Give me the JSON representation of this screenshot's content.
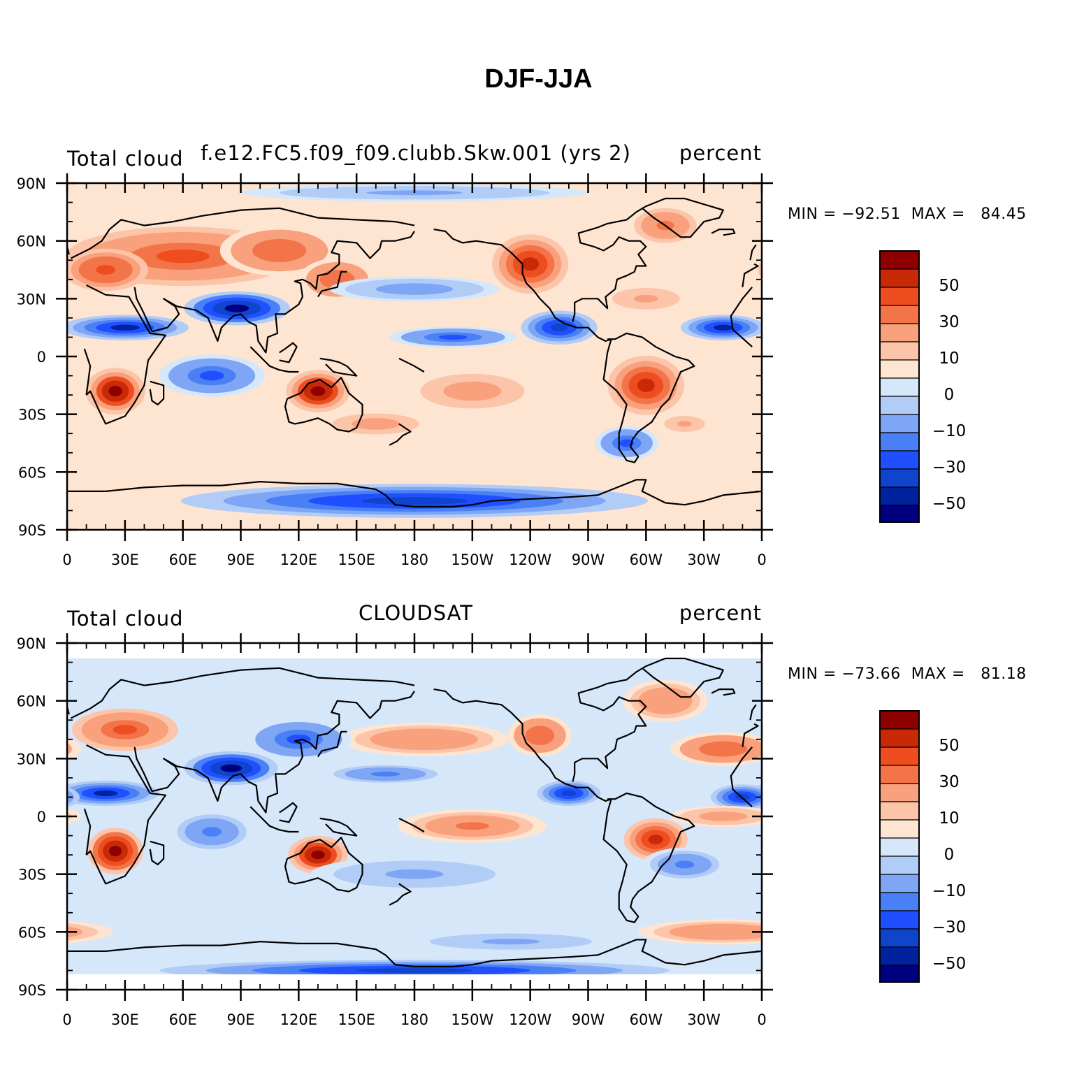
{
  "title": "DJF-JJA",
  "colors": {
    "levels": [
      "#00007f",
      "#00229e",
      "#0f44cc",
      "#1f4fff",
      "#4a80f6",
      "#7ea6f5",
      "#b0ccf7",
      "#d6e7fa",
      "#fde5d2",
      "#fcc4a8",
      "#f9a17c",
      "#f47449",
      "#ee4d20",
      "#c82a08",
      "#8e0000"
    ],
    "coast": "#000000"
  },
  "colorbar_labels": [
    "50",
    "30",
    "10",
    "0",
    "−10",
    "−30",
    "−50"
  ],
  "panels": [
    {
      "left_label": "Total cloud",
      "center_label": "f.e12.FC5.f09_f09.clubb.Skw.001 (yrs 2)",
      "right_label": "percent",
      "minmax": "MIN = −92.51  MAX =   84.45"
    },
    {
      "left_label": "Total cloud",
      "center_label": "CLOUDSAT",
      "right_label": "percent",
      "minmax": "MIN = −73.66  MAX =   81.18"
    }
  ],
  "axes": {
    "lat_labels": [
      "90N",
      "60N",
      "30N",
      "0",
      "30S",
      "60S",
      "90S"
    ],
    "lon_labels": [
      "0",
      "30E",
      "60E",
      "90E",
      "120E",
      "150E",
      "180",
      "150W",
      "120W",
      "90W",
      "60W",
      "30W",
      "0"
    ]
  },
  "chart_data": {
    "type": "heatmap",
    "title": "DJF-JJA",
    "variable": "Total cloud",
    "units": "percent",
    "contour_levels": [
      -60,
      -50,
      -40,
      -30,
      -20,
      -10,
      -5,
      0,
      5,
      10,
      20,
      30,
      40,
      50,
      60
    ],
    "colorbar_labels": [
      50,
      30,
      10,
      0,
      -10,
      -30,
      -50
    ],
    "x_range": [
      0,
      360
    ],
    "y_range": [
      -90,
      90
    ],
    "series": [
      {
        "name": "f.e12.FC5.f09_f09.clubb.Skw.001 (yrs 2)",
        "min": -92.51,
        "max": 84.45
      },
      {
        "name": "CLOUDSAT",
        "min": -73.66,
        "max": 81.18
      }
    ],
    "fields": [
      {
        "name": "f.e12.FC5.f09_f09.clubb.Skw.001 (yrs 2)",
        "lat_extent": [
          -90,
          90
        ],
        "background": 1,
        "features": [
          {
            "lon": 60,
            "lat": 52,
            "w": 55,
            "h": 14,
            "v": 35
          },
          {
            "lon": 20,
            "lat": 45,
            "w": 20,
            "h": 10,
            "v": 40
          },
          {
            "lon": 110,
            "lat": 55,
            "w": 28,
            "h": 12,
            "v": 30
          },
          {
            "lon": 240,
            "lat": 48,
            "w": 18,
            "h": 14,
            "v": 50
          },
          {
            "lon": 310,
            "lat": 68,
            "w": 18,
            "h": 10,
            "v": 25
          },
          {
            "lon": 300,
            "lat": 30,
            "w": 25,
            "h": 8,
            "v": 12
          },
          {
            "lon": 30,
            "lat": 15,
            "w": 30,
            "h": 6,
            "v": -50
          },
          {
            "lon": 88,
            "lat": 25,
            "w": 25,
            "h": 8,
            "v": -60
          },
          {
            "lon": 140,
            "lat": 40,
            "w": 18,
            "h": 10,
            "v": 30
          },
          {
            "lon": 340,
            "lat": 15,
            "w": 20,
            "h": 6,
            "v": -50
          },
          {
            "lon": 255,
            "lat": 15,
            "w": 18,
            "h": 8,
            "v": -40
          },
          {
            "lon": 200,
            "lat": 10,
            "w": 30,
            "h": 5,
            "v": -30
          },
          {
            "lon": 180,
            "lat": 35,
            "w": 40,
            "h": 6,
            "v": -15
          },
          {
            "lon": 25,
            "lat": -18,
            "w": 14,
            "h": 11,
            "v": 55
          },
          {
            "lon": 130,
            "lat": -18,
            "w": 15,
            "h": 10,
            "v": 55
          },
          {
            "lon": 300,
            "lat": -15,
            "w": 18,
            "h": 14,
            "v": 50
          },
          {
            "lon": 75,
            "lat": -10,
            "w": 25,
            "h": 10,
            "v": -30
          },
          {
            "lon": 210,
            "lat": -18,
            "w": 30,
            "h": 10,
            "v": 15
          },
          {
            "lon": 160,
            "lat": -35,
            "w": 25,
            "h": 6,
            "v": 15
          },
          {
            "lon": 320,
            "lat": -35,
            "w": 15,
            "h": 6,
            "v": 12
          },
          {
            "lon": 180,
            "lat": -75,
            "w": 110,
            "h": 8,
            "v": -45
          },
          {
            "lon": 290,
            "lat": -45,
            "w": 15,
            "h": 8,
            "v": -30
          },
          {
            "lon": 180,
            "lat": 85,
            "w": 100,
            "h": 5,
            "v": -12
          }
        ]
      },
      {
        "name": "CLOUDSAT",
        "lat_extent": [
          -82,
          82
        ],
        "background": 0,
        "features": [
          {
            "lon": 30,
            "lat": 45,
            "w": 25,
            "h": 10,
            "v": 35
          },
          {
            "lon": 310,
            "lat": 60,
            "w": 20,
            "h": 10,
            "v": 20
          },
          {
            "lon": 340,
            "lat": 35,
            "w": 25,
            "h": 8,
            "v": 30
          },
          {
            "lon": 245,
            "lat": 42,
            "w": 15,
            "h": 10,
            "v": 30
          },
          {
            "lon": 185,
            "lat": 40,
            "w": 40,
            "h": 8,
            "v": 20
          },
          {
            "lon": 85,
            "lat": 25,
            "w": 22,
            "h": 8,
            "v": -60
          },
          {
            "lon": 120,
            "lat": 40,
            "w": 25,
            "h": 10,
            "v": -30
          },
          {
            "lon": 20,
            "lat": 12,
            "w": 25,
            "h": 6,
            "v": -50
          },
          {
            "lon": 260,
            "lat": 12,
            "w": 15,
            "h": 6,
            "v": -45
          },
          {
            "lon": 350,
            "lat": 10,
            "w": 15,
            "h": 6,
            "v": -40
          },
          {
            "lon": 165,
            "lat": 22,
            "w": 30,
            "h": 5,
            "v": -25
          },
          {
            "lon": 210,
            "lat": -5,
            "w": 35,
            "h": 8,
            "v": 25
          },
          {
            "lon": 340,
            "lat": 0,
            "w": 25,
            "h": 5,
            "v": 15
          },
          {
            "lon": 25,
            "lat": -18,
            "w": 13,
            "h": 11,
            "v": 60
          },
          {
            "lon": 130,
            "lat": -20,
            "w": 14,
            "h": 9,
            "v": 55
          },
          {
            "lon": 305,
            "lat": -12,
            "w": 15,
            "h": 10,
            "v": 50
          },
          {
            "lon": 75,
            "lat": -8,
            "w": 20,
            "h": 10,
            "v": -25
          },
          {
            "lon": 180,
            "lat": -30,
            "w": 60,
            "h": 10,
            "v": -12
          },
          {
            "lon": 320,
            "lat": -25,
            "w": 20,
            "h": 8,
            "v": -20
          },
          {
            "lon": 340,
            "lat": -60,
            "w": 40,
            "h": 6,
            "v": 20
          },
          {
            "lon": 180,
            "lat": -80,
            "w": 120,
            "h": 5,
            "v": -40
          },
          {
            "lon": 230,
            "lat": -65,
            "w": 60,
            "h": 6,
            "v": -10
          }
        ]
      }
    ]
  }
}
